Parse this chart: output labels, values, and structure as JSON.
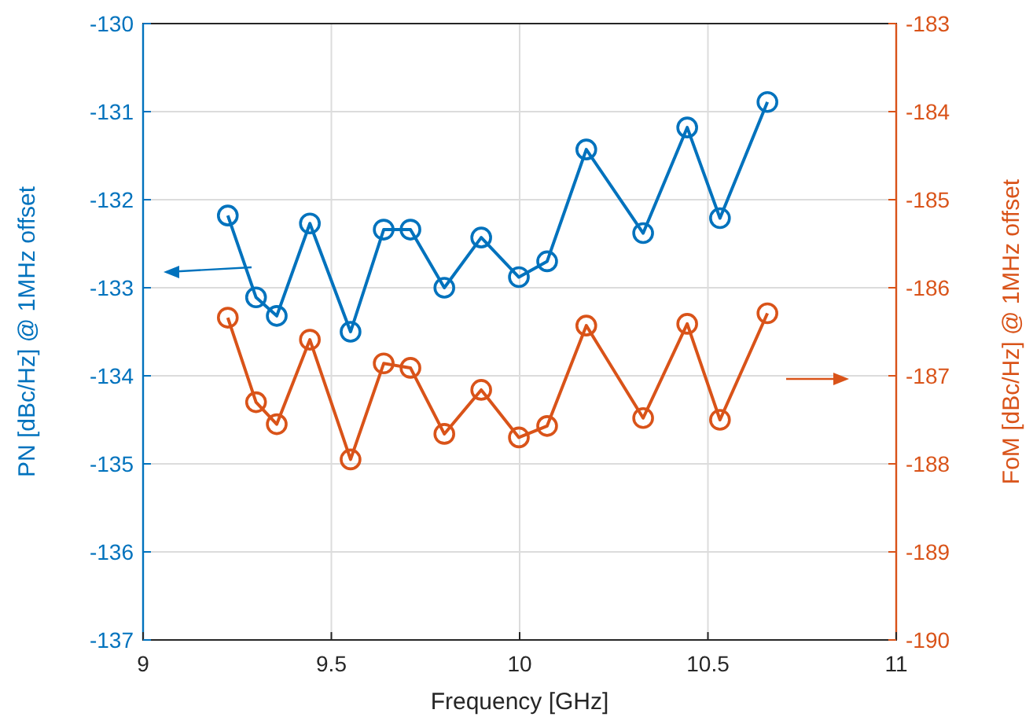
{
  "chart_data": {
    "type": "line",
    "xlabel": "Frequency [GHz]",
    "ylabel": "PN [dBc/Hz] @ 1MHz offset",
    "y2label": "FoM [dBc/Hz] @ 1MHz offset",
    "x": [
      9.225,
      9.3,
      9.355,
      9.443,
      9.551,
      9.639,
      9.71,
      9.8,
      9.898,
      9.998,
      10.073,
      10.177,
      10.328,
      10.445,
      10.532,
      10.658
    ],
    "series": [
      {
        "color": "#0072bd",
        "values": [
          -132.18,
          -133.11,
          -133.32,
          -132.27,
          -133.5,
          -132.34,
          -132.34,
          -133.0,
          -132.43,
          -132.88,
          -132.7,
          -131.43,
          -132.38,
          -131.18,
          -132.21,
          -130.89
        ]
      },
      {
        "color": "#d95319",
        "axis": "y2",
        "values": [
          -186.34,
          -187.3,
          -187.55,
          -186.59,
          -187.95,
          -186.86,
          -186.91,
          -187.66,
          -187.16,
          -187.7,
          -187.57,
          -186.43,
          -187.48,
          -186.41,
          -187.5,
          -186.29
        ]
      }
    ],
    "xlim": [
      9,
      11
    ],
    "xticks": [
      9,
      9.5,
      10,
      10.5,
      11
    ],
    "ylim": [
      -137,
      -130
    ],
    "yticks": [
      -137,
      -136,
      -135,
      -134,
      -133,
      -132,
      -131,
      -130
    ],
    "y2lim": [
      -190,
      -183
    ],
    "y2ticks": [
      -190,
      -189,
      -188,
      -187,
      -186,
      -185,
      -184,
      -183
    ],
    "grid": true,
    "marker": "circle",
    "line_style": "solid"
  }
}
